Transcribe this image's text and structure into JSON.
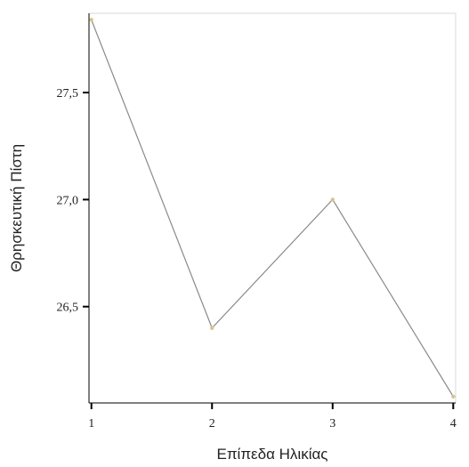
{
  "chart_data": {
    "type": "line",
    "title": "",
    "xlabel": "Επίπεδα Ηλικίας",
    "ylabel": "Θρησκευτική Πίστη",
    "x": [
      1,
      2,
      3,
      4
    ],
    "x_tick_labels": [
      "1",
      "2",
      "3",
      "4"
    ],
    "y_ticks": [
      26.5,
      27.0,
      27.5
    ],
    "y_tick_labels": [
      "26,5",
      "27,0",
      "27,5"
    ],
    "xlim": [
      0.98,
      4.02
    ],
    "ylim": [
      26.05,
      27.87
    ],
    "series": [
      {
        "values": [
          27.84,
          26.4,
          27.0,
          26.08
        ]
      }
    ],
    "grid": false,
    "colors": {
      "line": "#8a8a8a",
      "marker": "#d9c48a",
      "axis": "#000000",
      "frame": "#d8d8d8"
    }
  }
}
